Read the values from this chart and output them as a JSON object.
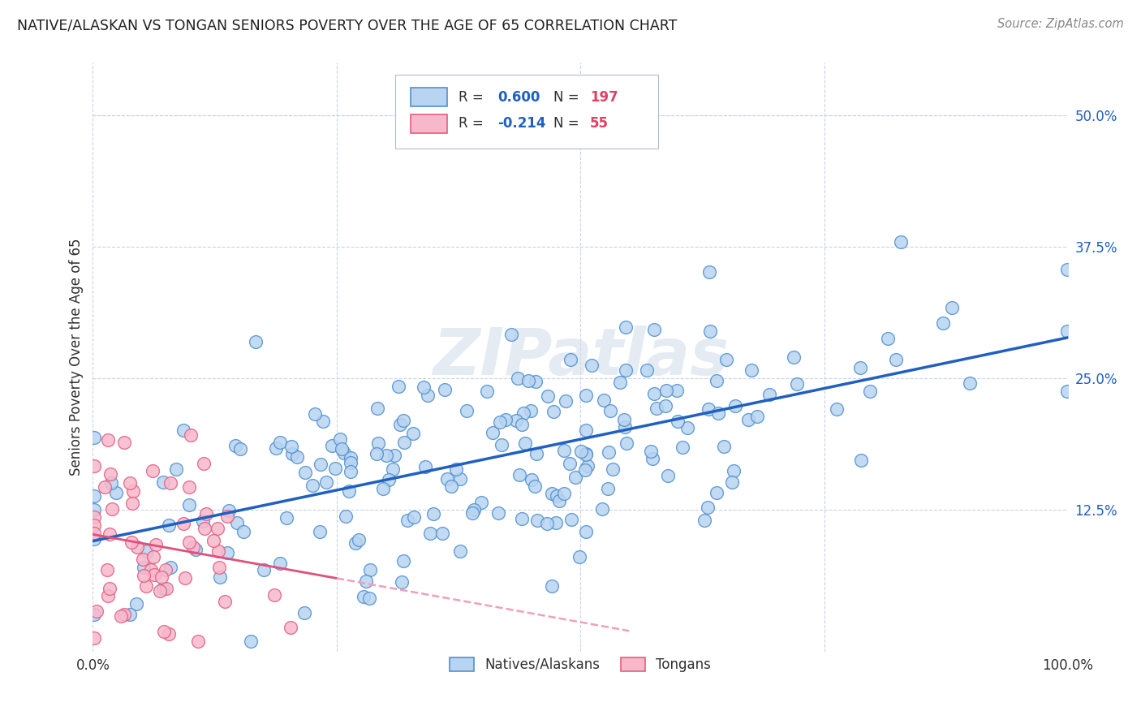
{
  "title": "NATIVE/ALASKAN VS TONGAN SENIORS POVERTY OVER THE AGE OF 65 CORRELATION CHART",
  "source": "Source: ZipAtlas.com",
  "ylabel": "Seniors Poverty Over the Age of 65",
  "xlim": [
    0,
    1.0
  ],
  "ylim": [
    -0.01,
    0.55
  ],
  "native_R": 0.6,
  "native_N": 197,
  "tongan_R": -0.214,
  "tongan_N": 55,
  "native_color": "#b8d4f0",
  "tongan_color": "#f8b8cc",
  "native_edge_color": "#5090d0",
  "tongan_edge_color": "#e06080",
  "native_line_color": "#2060c0",
  "tongan_line_color": "#e0507a",
  "tongan_dash_color": "#f0a0b8",
  "watermark": "ZIPatlas",
  "background_color": "#ffffff",
  "grid_color": "#c8d4e8",
  "title_color": "#202020",
  "legend_r_color": "#2060c0",
  "legend_n_color": "#e04060",
  "seed": 99
}
